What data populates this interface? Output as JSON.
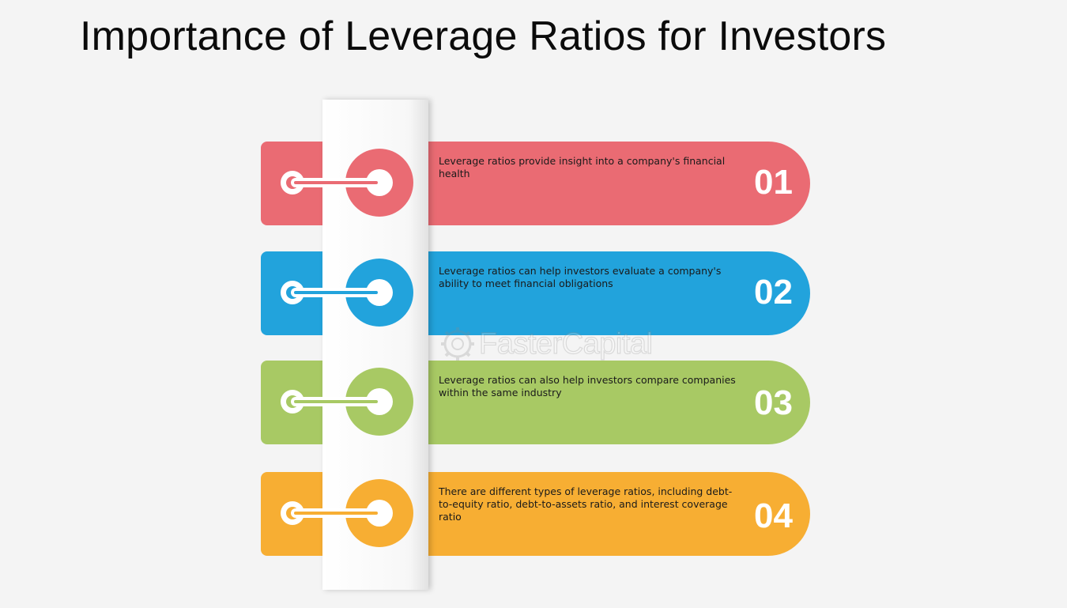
{
  "title": "Importance of Leverage Ratios for Investors",
  "watermark": "FasterCapital",
  "steps": [
    {
      "number": "01",
      "text": "Leverage ratios provide insight into a company's financial health",
      "color": "#ea6b73"
    },
    {
      "number": "02",
      "text": "Leverage ratios can help investors evaluate a company's ability to meet financial obligations",
      "color": "#22a3dc"
    },
    {
      "number": "03",
      "text": "Leverage ratios can also help investors compare companies within the same industry",
      "color": "#a8c964"
    },
    {
      "number": "04",
      "text": "There are different types of leverage ratios, including debt-to-equity ratio, debt-to-assets ratio, and interest coverage ratio",
      "color": "#f7ae33"
    }
  ]
}
